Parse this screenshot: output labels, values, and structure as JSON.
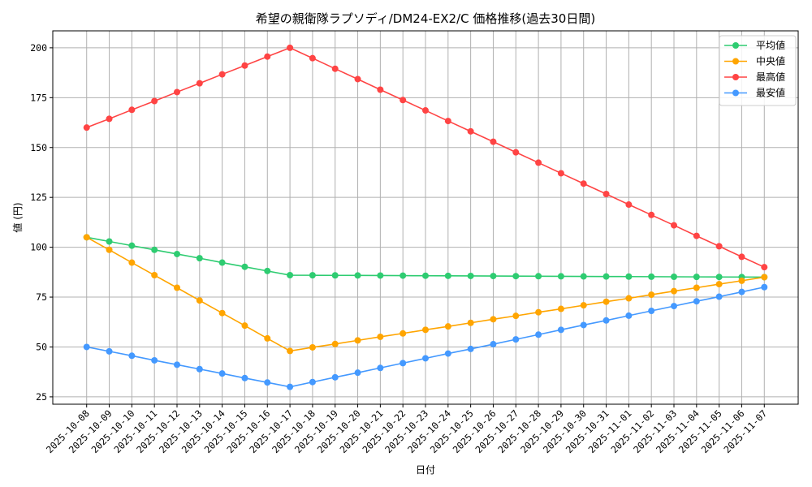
{
  "chart_data": {
    "type": "line",
    "title": "希望の親衛隊ラプソディ/DM24-EX2/C 価格推移(過去30日間)",
    "xlabel": "日付",
    "ylabel": "値 (円)",
    "ylim": [
      21.3,
      208.5
    ],
    "yticks": [
      25,
      50,
      75,
      100,
      125,
      150,
      175,
      200
    ],
    "grid": true,
    "legend_position": "top-right",
    "x": [
      "2025-10-08",
      "2025-10-09",
      "2025-10-10",
      "2025-10-11",
      "2025-10-12",
      "2025-10-13",
      "2025-10-14",
      "2025-10-15",
      "2025-10-16",
      "2025-10-17",
      "2025-10-18",
      "2025-10-19",
      "2025-10-20",
      "2025-10-21",
      "2025-10-22",
      "2025-10-23",
      "2025-10-24",
      "2025-10-25",
      "2025-10-26",
      "2025-10-27",
      "2025-10-28",
      "2025-10-29",
      "2025-10-30",
      "2025-10-31",
      "2025-11-01",
      "2025-11-02",
      "2025-11-03",
      "2025-11-04",
      "2025-11-05",
      "2025-11-06",
      "2025-11-07"
    ],
    "series": [
      {
        "name": "平均値",
        "color": "#2ecc71",
        "values": [
          105,
          102.9,
          100.8,
          98.7,
          96.6,
          94.5,
          92.3,
          90.2,
          88.1,
          86,
          85.95,
          85.9,
          85.86,
          85.81,
          85.76,
          85.71,
          85.67,
          85.62,
          85.57,
          85.52,
          85.48,
          85.43,
          85.38,
          85.33,
          85.29,
          85.24,
          85.19,
          85.14,
          85.1,
          85.05,
          85
        ]
      },
      {
        "name": "中央値",
        "color": "#ffa500",
        "values": [
          105,
          98.7,
          92.3,
          86,
          79.7,
          73.3,
          67,
          60.7,
          54.3,
          48,
          49.8,
          51.5,
          53.3,
          55.1,
          56.8,
          58.6,
          60.3,
          62.1,
          63.9,
          65.6,
          67.4,
          69.1,
          70.9,
          72.7,
          74.4,
          76.2,
          78,
          79.7,
          81.5,
          83.2,
          85
        ]
      },
      {
        "name": "最高値",
        "color": "#ff4444",
        "values": [
          160,
          164.4,
          168.9,
          173.3,
          177.8,
          182.2,
          186.7,
          191.1,
          195.6,
          200,
          194.8,
          189.5,
          184.3,
          179,
          173.8,
          168.6,
          163.3,
          158.1,
          152.9,
          147.6,
          142.4,
          137.1,
          131.9,
          126.7,
          121.4,
          116.2,
          111,
          105.7,
          100.5,
          95.2,
          90
        ]
      },
      {
        "name": "最安値",
        "color": "#4499ff",
        "values": [
          50,
          47.8,
          45.6,
          43.3,
          41.1,
          38.9,
          36.7,
          34.4,
          32.2,
          30,
          32.4,
          34.8,
          37.1,
          39.5,
          41.9,
          44.3,
          46.7,
          49,
          51.4,
          53.8,
          56.2,
          58.6,
          61,
          63.3,
          65.7,
          68.1,
          70.5,
          72.9,
          75.2,
          77.6,
          80
        ]
      }
    ]
  }
}
